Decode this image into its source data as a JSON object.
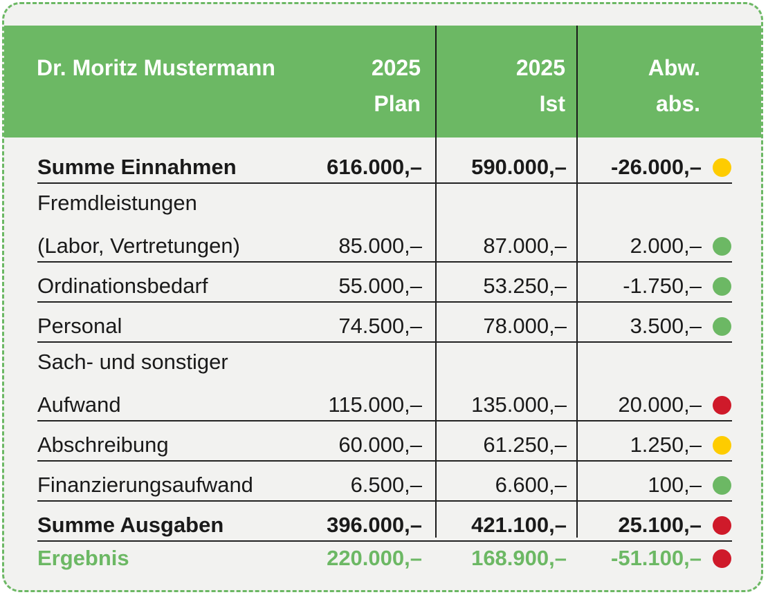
{
  "header": {
    "name": "Dr. Moritz Mustermann",
    "plan_line1": "2025",
    "plan_line2": "Plan",
    "ist_line1": "2025",
    "ist_line2": "Ist",
    "abw_line1": "Abw.",
    "abw_line2": "abs."
  },
  "status_colors": {
    "yellow": "#fecc00",
    "green": "#6cb864",
    "red": "#cf1a2a"
  },
  "rows": [
    {
      "label": "Summe Einnahmen",
      "label2": "",
      "plan": "616.000,–",
      "ist": "590.000,–",
      "abw": "-26.000,–",
      "status": "yellow",
      "style": "bold"
    },
    {
      "label": "Fremdleistungen",
      "label2": "(Labor, Vertretungen)",
      "plan": "85.000,–",
      "ist": "87.000,–",
      "abw": "2.000,–",
      "status": "green",
      "style": "normal"
    },
    {
      "label": "Ordinationsbedarf",
      "label2": "",
      "plan": "55.000,–",
      "ist": "53.250,–",
      "abw": "-1.750,–",
      "status": "green",
      "style": "normal"
    },
    {
      "label": "Personal",
      "label2": "",
      "plan": "74.500,–",
      "ist": "78.000,–",
      "abw": "3.500,–",
      "status": "green",
      "style": "normal"
    },
    {
      "label": "Sach- und sonstiger",
      "label2": "Aufwand",
      "plan": "115.000,–",
      "ist": "135.000,–",
      "abw": "20.000,–",
      "status": "red",
      "style": "normal"
    },
    {
      "label": "Abschreibung",
      "label2": "",
      "plan": "60.000,–",
      "ist": "61.250,–",
      "abw": "1.250,–",
      "status": "yellow",
      "style": "normal"
    },
    {
      "label": "Finanzierungsaufwand",
      "label2": "",
      "plan": "6.500,–",
      "ist": "6.600,–",
      "abw": "100,–",
      "status": "green",
      "style": "normal"
    },
    {
      "label": "Summe Ausgaben",
      "label2": "",
      "plan": "396.000,–",
      "ist": "421.100,–",
      "abw": "25.100,–",
      "status": "red",
      "style": "bold"
    },
    {
      "label": "Ergebnis",
      "label2": "",
      "plan": "220.000,–",
      "ist": "168.900,–",
      "abw": "-51.100,–",
      "status": "red",
      "style": "result"
    }
  ]
}
